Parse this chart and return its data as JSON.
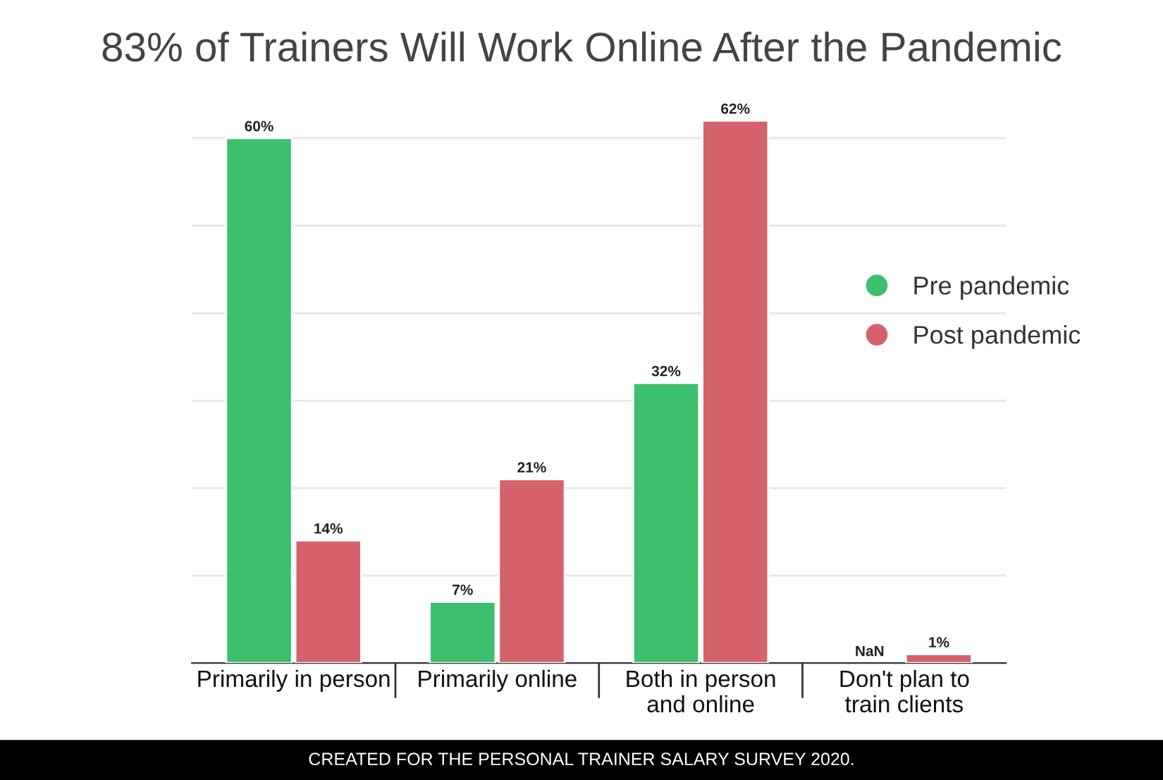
{
  "chart_data": {
    "type": "bar",
    "title": "83% of Trainers Will Work Online After the Pandemic",
    "categories": [
      "Primarily in person",
      "Primarily online",
      "Both in person\nand online",
      "Don't plan to\ntrain clients"
    ],
    "series": [
      {
        "name": "Pre pandemic",
        "color": "#3dbf6e",
        "values": [
          60,
          7,
          32,
          null
        ],
        "value_labels": [
          "60%",
          "7%",
          "32%",
          "NaN"
        ]
      },
      {
        "name": "Post pandemic",
        "color": "#d5626a",
        "values": [
          14,
          21,
          62,
          1
        ],
        "value_labels": [
          "14%",
          "21%",
          "62%",
          "1%"
        ]
      }
    ],
    "yticks": [
      {
        "value": 0,
        "label": null
      },
      {
        "value": 10,
        "label": null
      },
      {
        "value": 20,
        "label": null
      },
      {
        "value": 30,
        "label": null
      },
      {
        "value": 40,
        "label": null
      },
      {
        "value": 50,
        "label": null
      },
      {
        "value": 60,
        "label": null
      }
    ],
    "tick_labels": "x",
    "grid": "y",
    "legend": "top right",
    "annotations": [
      "CREATED FOR THE PERSONAL TRAINER SALARY SURVEY 2020."
    ]
  }
}
